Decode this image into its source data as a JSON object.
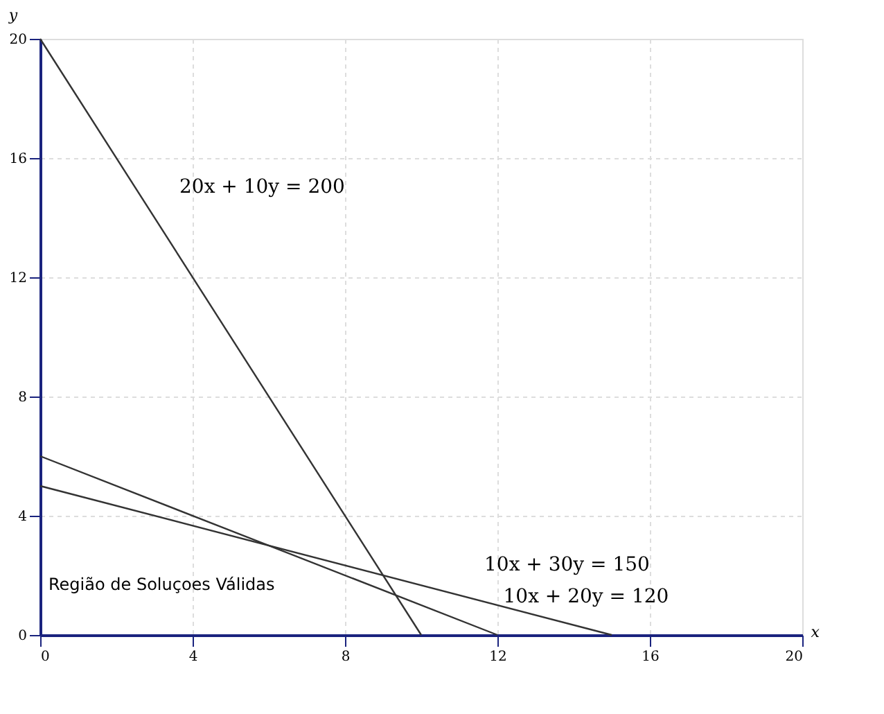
{
  "chart_data": {
    "type": "line",
    "xlabel": "x",
    "ylabel": "y",
    "series": [
      {
        "color": "#333333",
        "x": [
          0,
          10
        ],
        "values": [
          20,
          0
        ]
      },
      {
        "color": "#333333",
        "x": [
          0,
          15
        ],
        "values": [
          5,
          0
        ]
      },
      {
        "color": "#333333",
        "x": [
          0,
          12
        ],
        "values": [
          6,
          0
        ]
      }
    ],
    "xlim": [
      0,
      20
    ],
    "ylim": [
      0,
      20
    ],
    "xticks": [
      0,
      4,
      8,
      12,
      16,
      20
    ],
    "yticks": [
      0,
      4,
      8,
      12,
      16,
      20
    ],
    "grid": true,
    "marker": "none",
    "line_style": "solid",
    "annotations": [
      {
        "text": "20x + 10y = 200",
        "x": 3,
        "y": 14
      },
      {
        "text": "10x + 30y = 150",
        "x": 11,
        "y": 1.33
      },
      {
        "text": "10x + 20y = 120",
        "x": 11.5,
        "y": 0.25
      },
      "Região de Soluçoes Válidas"
    ]
  }
}
